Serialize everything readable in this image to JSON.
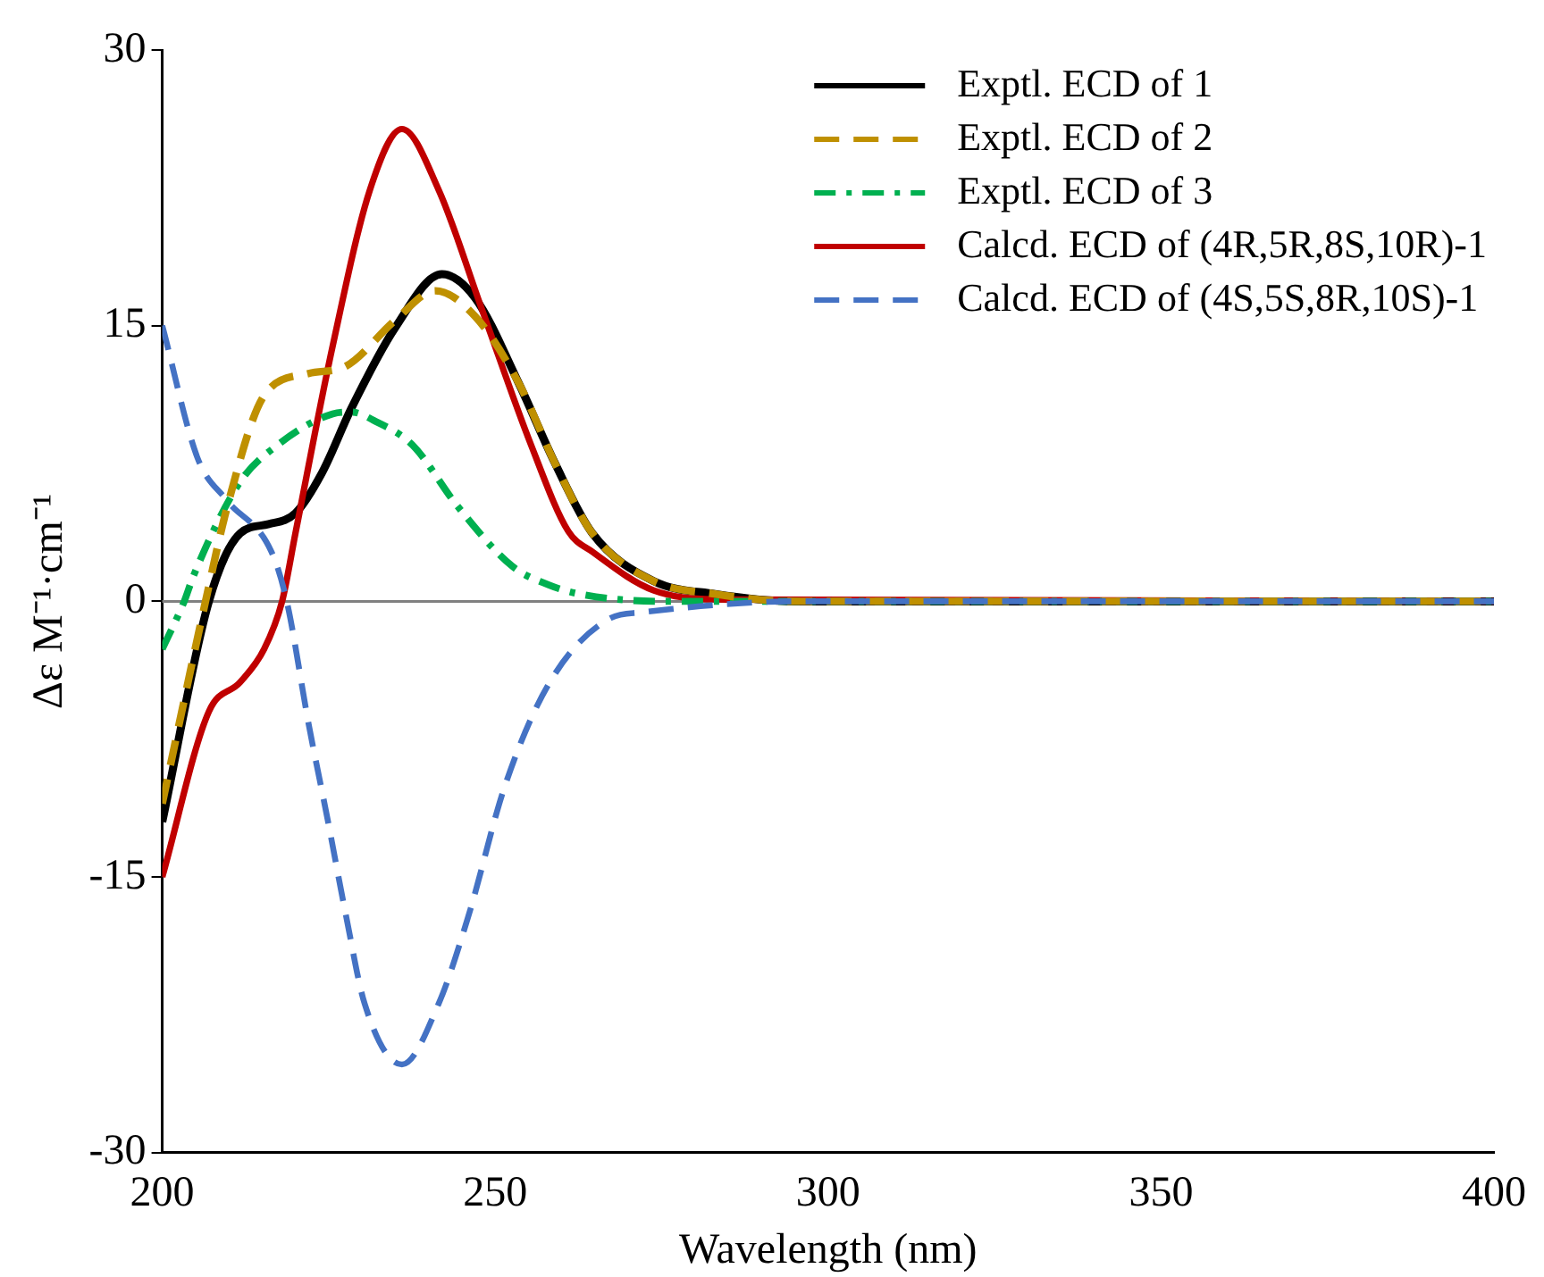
{
  "chart_data": {
    "type": "line",
    "xlabel": "Wavelength (nm)",
    "ylabel": "Δε M⁻¹·cm⁻¹",
    "xlim": [
      200,
      400
    ],
    "xticks": [
      200,
      250,
      300,
      350,
      400
    ],
    "ylim": [
      -30,
      30
    ],
    "yticks": [
      -30,
      -15,
      0,
      15,
      30
    ],
    "grid": false,
    "legend": "top right",
    "marker": "none",
    "ref_lines": [
      {
        "axis": "y",
        "value": 0,
        "color": "#808080"
      }
    ],
    "series": [
      {
        "name": "Exptl. ECD of 1",
        "color": "#000000",
        "line_style": "solid",
        "x": [
          200,
          207,
          211.7,
          216,
          220,
          224,
          228.4,
          235,
          242,
          247,
          253.5,
          259,
          264.6,
          273.8,
          283,
          295,
          400
        ],
        "values": [
          -12,
          0,
          3.7,
          4.2,
          4.8,
          7,
          10.5,
          14.9,
          17.8,
          16.5,
          11.9,
          7.5,
          3.7,
          1.1,
          0.4,
          0,
          0
        ]
      },
      {
        "name": "Exptl. ECD of 2",
        "color": "#bf9000",
        "line_style": "dashed",
        "x": [
          200,
          206.5,
          209.8,
          215.3,
          222,
          227.6,
          235,
          241,
          247,
          253.5,
          259,
          264.6,
          273.8,
          283,
          295,
          400
        ],
        "values": [
          -11,
          0,
          5.2,
          11.2,
          12.4,
          12.8,
          15.3,
          16.9,
          15.5,
          11.9,
          7.5,
          3.7,
          1.1,
          0.4,
          0,
          0
        ]
      },
      {
        "name": "Exptl. ECD of 3",
        "color": "#00b050",
        "line_style": "dashdot",
        "x": [
          200,
          203.3,
          204.7,
          211.7,
          217.3,
          225.6,
          228.4,
          232,
          237.6,
          244.3,
          252.6,
          258,
          262.7,
          275,
          400
        ],
        "values": [
          -2.6,
          0,
          1.4,
          6.5,
          8.5,
          10.2,
          10.3,
          9.8,
          8.5,
          5.2,
          1.9,
          0.9,
          0.4,
          0,
          0
        ]
      },
      {
        "name": "Calcd. ECD of (4R,5R,8S,10R)-1",
        "color": "#c00000",
        "line_style": "solid",
        "x": [
          200,
          207,
          211.7,
          215.3,
          218,
          220,
          225.6,
          231.2,
          236,
          241.5,
          248,
          255.4,
          261,
          264.6,
          273.8,
          285,
          400
        ],
        "values": [
          -15,
          -6,
          -4.4,
          -2.6,
          0,
          3.7,
          13.9,
          22.4,
          25.7,
          22.4,
          15.9,
          8.5,
          3.8,
          2.7,
          0.6,
          0.1,
          0
        ]
      },
      {
        "name": "Calcd. ECD of (4S,5S,8R,10S)-1",
        "color": "#4472c4",
        "line_style": "dashed",
        "x": [
          200,
          205.3,
          209.7,
          216.4,
          218.7,
          222,
          224.8,
          227.6,
          230.4,
          236,
          241.5,
          246,
          251.5,
          258.2,
          267.4,
          272,
          283,
          295,
          400
        ],
        "values": [
          15,
          7.8,
          5.5,
          2.7,
          0,
          -6.7,
          -11.8,
          -17.1,
          -21.9,
          -25.2,
          -21.9,
          -17.1,
          -10,
          -4.4,
          -0.9,
          -0.6,
          -0.2,
          0,
          0
        ]
      }
    ]
  }
}
